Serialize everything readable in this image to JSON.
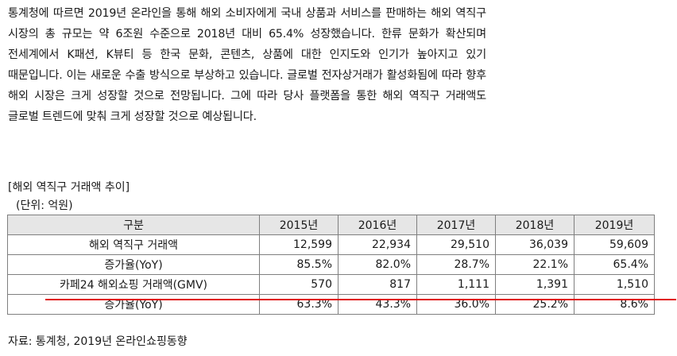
{
  "paragraph": "통계청에 따르면 2019년 온라인을 통해 해외 소비자에게 국내 상품과 서비스를 판매하는 해외 역직구 시장의 총 규모는 약 6조원 수준으로 2018년 대비 65.4% 성장했습니다. 한류 문화가 확산되며 전세계에서 K패션, K뷰티 등 한국 문화, 콘텐츠, 상품에 대한 인지도와 인기가 높아지고 있기 때문입니다. 이는 새로운 수출 방식으로 부상하고 있습니다. 글로벌 전자상거래가 활성화됨에 따라 향후 해외 시장은 크게 성장할 것으로 전망됩니다. 그에 따라 당사 플랫폼을 통한 해외 역직구 거래액도 글로벌 트렌드에 맞춰 크게 성장할 것으로 예상됩니다.",
  "section_title": "[해외 역직구 거래액 추이]",
  "unit_note": "(단위: 억원)",
  "table": {
    "header": [
      "구분",
      "2015년",
      "2016년",
      "2017년",
      "2018년",
      "2019년"
    ],
    "rows": [
      {
        "label": "해외 역직구 거래액",
        "values": [
          "12,599",
          "22,934",
          "29,510",
          "36,039",
          "59,609"
        ]
      },
      {
        "label": "증가율(YoY)",
        "values": [
          "85.5%",
          "82.0%",
          "28.7%",
          "22.1%",
          "65.4%"
        ]
      },
      {
        "label": "카페24 해외쇼핑 거래액(GMV)",
        "values": [
          "570",
          "817",
          "1,111",
          "1,391",
          "1,510"
        ]
      },
      {
        "label": "증가율(YoY)",
        "values": [
          "63.3%",
          "43.3%",
          "36.0%",
          "25.2%",
          "8.6%"
        ]
      }
    ]
  },
  "source_note": "자료: 통계청, 2019년 온라인쇼핑동향",
  "colors": {
    "highlight_line": "#e01010",
    "header_background": "#e6e6e6",
    "table_border": "#7f7f7f"
  }
}
